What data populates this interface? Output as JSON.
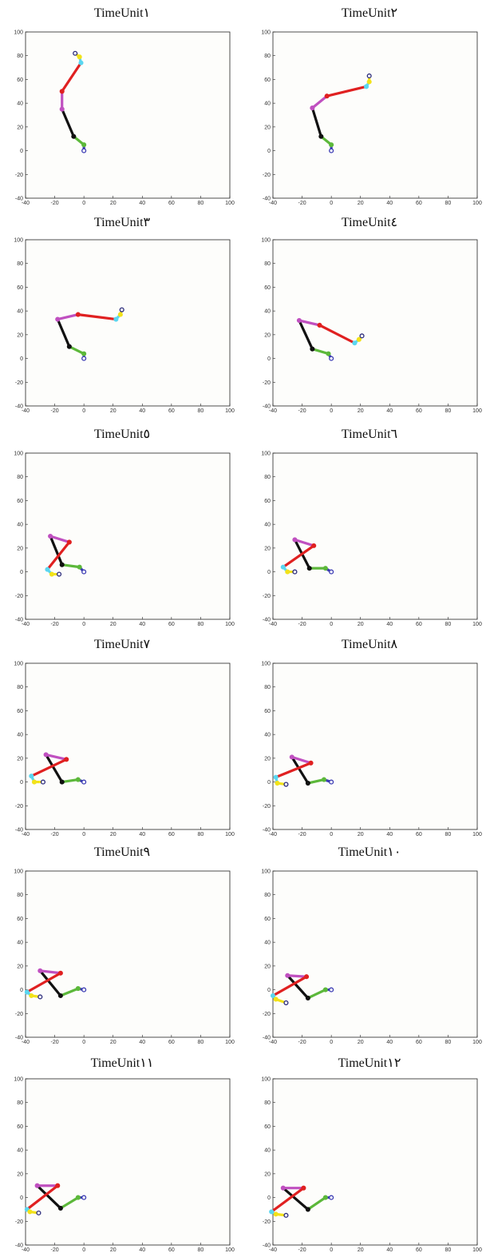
{
  "chart_data": [
    {
      "title": "TimeUnit١",
      "type": "line",
      "xlim": [
        -40,
        100
      ],
      "ylim": [
        -40,
        100
      ],
      "joints": {
        "foot": [
          0,
          0
        ],
        "ankle": [
          0,
          5
        ],
        "knee": [
          -7,
          12
        ],
        "hip": [
          -15,
          35
        ],
        "shoulder": [
          -15,
          50
        ],
        "elbow": [
          -2,
          74
        ],
        "wrist": [
          -3,
          79
        ],
        "hand": [
          -6,
          82
        ]
      }
    },
    {
      "title": "TimeUnit٢",
      "type": "line",
      "xlim": [
        -40,
        100
      ],
      "ylim": [
        -40,
        100
      ],
      "joints": {
        "foot": [
          0,
          0
        ],
        "ankle": [
          0,
          5
        ],
        "knee": [
          -7,
          12
        ],
        "hip": [
          -13,
          36
        ],
        "shoulder": [
          -3,
          46
        ],
        "elbow": [
          24,
          54
        ],
        "wrist": [
          26,
          58
        ],
        "hand": [
          26,
          63
        ]
      }
    },
    {
      "title": "TimeUnit٣",
      "type": "line",
      "xlim": [
        -40,
        100
      ],
      "ylim": [
        -40,
        100
      ],
      "joints": {
        "foot": [
          0,
          0
        ],
        "ankle": [
          0,
          4
        ],
        "knee": [
          -10,
          10
        ],
        "hip": [
          -18,
          33
        ],
        "shoulder": [
          -4,
          37
        ],
        "elbow": [
          22,
          33
        ],
        "wrist": [
          25,
          37
        ],
        "hand": [
          26,
          41
        ]
      }
    },
    {
      "title": "TimeUnit٤",
      "type": "line",
      "xlim": [
        -40,
        100
      ],
      "ylim": [
        -40,
        100
      ],
      "joints": {
        "foot": [
          0,
          0
        ],
        "ankle": [
          -2,
          4
        ],
        "knee": [
          -13,
          8
        ],
        "hip": [
          -22,
          32
        ],
        "shoulder": [
          -8,
          28
        ],
        "elbow": [
          16,
          13
        ],
        "wrist": [
          19,
          16
        ],
        "hand": [
          21,
          19
        ]
      }
    },
    {
      "title": "TimeUnit٥",
      "type": "line",
      "xlim": [
        -40,
        100
      ],
      "ylim": [
        -40,
        100
      ],
      "joints": {
        "foot": [
          0,
          0
        ],
        "ankle": [
          -3,
          4
        ],
        "knee": [
          -15,
          6
        ],
        "hip": [
          -23,
          30
        ],
        "shoulder": [
          -10,
          25
        ],
        "elbow": [
          -25,
          2
        ],
        "wrist": [
          -22,
          -2
        ],
        "hand": [
          -17,
          -2
        ]
      }
    },
    {
      "title": "TimeUnit٦",
      "type": "line",
      "xlim": [
        -40,
        100
      ],
      "ylim": [
        -40,
        100
      ],
      "joints": {
        "foot": [
          0,
          0
        ],
        "ankle": [
          -4,
          3
        ],
        "knee": [
          -15,
          3
        ],
        "hip": [
          -25,
          27
        ],
        "shoulder": [
          -12,
          22
        ],
        "elbow": [
          -33,
          4
        ],
        "wrist": [
          -30,
          0
        ],
        "hand": [
          -25,
          0
        ]
      }
    },
    {
      "title": "TimeUnit٧",
      "type": "line",
      "xlim": [
        -40,
        100
      ],
      "ylim": [
        -40,
        100
      ],
      "joints": {
        "foot": [
          0,
          0
        ],
        "ankle": [
          -4,
          2
        ],
        "knee": [
          -15,
          0
        ],
        "hip": [
          -26,
          23
        ],
        "shoulder": [
          -12,
          19
        ],
        "elbow": [
          -36,
          5
        ],
        "wrist": [
          -34,
          0
        ],
        "hand": [
          -28,
          0
        ]
      }
    },
    {
      "title": "TimeUnit٨",
      "type": "line",
      "xlim": [
        -40,
        100
      ],
      "ylim": [
        -40,
        100
      ],
      "joints": {
        "foot": [
          0,
          0
        ],
        "ankle": [
          -5,
          2
        ],
        "knee": [
          -16,
          -1
        ],
        "hip": [
          -27,
          21
        ],
        "shoulder": [
          -14,
          16
        ],
        "elbow": [
          -38,
          4
        ],
        "wrist": [
          -37,
          -1
        ],
        "hand": [
          -31,
          -2
        ]
      }
    },
    {
      "title": "TimeUnit٩",
      "type": "line",
      "xlim": [
        -40,
        100
      ],
      "ylim": [
        -40,
        100
      ],
      "joints": {
        "foot": [
          0,
          0
        ],
        "ankle": [
          -4,
          1
        ],
        "knee": [
          -16,
          -5
        ],
        "hip": [
          -30,
          16
        ],
        "shoulder": [
          -16,
          14
        ],
        "elbow": [
          -39,
          -2
        ],
        "wrist": [
          -36,
          -5
        ],
        "hand": [
          -30,
          -6
        ]
      }
    },
    {
      "title": "TimeUnit١٠",
      "type": "line",
      "xlim": [
        -40,
        100
      ],
      "ylim": [
        -40,
        100
      ],
      "joints": {
        "foot": [
          0,
          0
        ],
        "ankle": [
          -4,
          0
        ],
        "knee": [
          -16,
          -7
        ],
        "hip": [
          -30,
          12
        ],
        "shoulder": [
          -17,
          11
        ],
        "elbow": [
          -40,
          -5
        ],
        "wrist": [
          -38,
          -8
        ],
        "hand": [
          -31,
          -11
        ]
      }
    },
    {
      "title": "TimeUnit١١",
      "type": "line",
      "xlim": [
        -40,
        100
      ],
      "ylim": [
        -40,
        100
      ],
      "joints": {
        "foot": [
          0,
          0
        ],
        "ankle": [
          -4,
          0
        ],
        "knee": [
          -16,
          -9
        ],
        "hip": [
          -32,
          10
        ],
        "shoulder": [
          -18,
          10
        ],
        "elbow": [
          -39,
          -10
        ],
        "wrist": [
          -37,
          -12
        ],
        "hand": [
          -31,
          -13
        ]
      }
    },
    {
      "title": "TimeUnit١٢",
      "type": "line",
      "xlim": [
        -40,
        100
      ],
      "ylim": [
        -40,
        100
      ],
      "joints": {
        "foot": [
          0,
          0
        ],
        "ankle": [
          -4,
          0
        ],
        "knee": [
          -16,
          -10
        ],
        "hip": [
          -33,
          8
        ],
        "shoulder": [
          -19,
          8
        ],
        "elbow": [
          -41,
          -12
        ],
        "wrist": [
          -38,
          -14
        ],
        "hand": [
          -31,
          -15
        ]
      }
    }
  ],
  "ticks": {
    "x": [
      "-40",
      "-20",
      "0",
      "20",
      "40",
      "60",
      "80",
      "100"
    ],
    "y": [
      "100",
      "80",
      "60",
      "40",
      "20",
      "0",
      "-20",
      "-40"
    ]
  },
  "segment_colors": {
    "foot-ankle": "#3b3bb3",
    "ankle-knee": "#5cb83a",
    "knee-hip": "#111111",
    "hip-shoulder": "#c050c0",
    "shoulder-elbow": "#e02020",
    "elbow-wrist": "#5ad6f0",
    "wrist-hand": "#f2e21a"
  },
  "joint_colors": {
    "foot": "#3b3bb3",
    "ankle": "#5cb83a",
    "knee": "#111111",
    "hip": "#c050c0",
    "shoulder": "#e02020",
    "elbow": "#5ad6f0",
    "wrist": "#f2e21a",
    "hand": "#2a2a7a"
  }
}
